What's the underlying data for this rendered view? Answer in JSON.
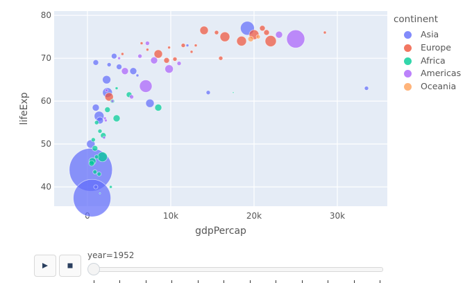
{
  "chart_data": {
    "type": "scatter",
    "subtype": "bubble",
    "title": "",
    "xlabel": "gdpPercap",
    "ylabel": "lifeExp",
    "xlim": [
      -4000,
      36000
    ],
    "ylim": [
      35.5,
      81
    ],
    "x_ticks": [
      0,
      10000,
      20000,
      30000
    ],
    "x_tick_labels": [
      "0",
      "10k",
      "20k",
      "30k"
    ],
    "y_ticks": [
      40,
      50,
      60,
      70,
      80
    ],
    "y_tick_labels": [
      "40",
      "50",
      "60",
      "70",
      "80"
    ],
    "grid": true,
    "legend_title": "continent",
    "legend_position": "right",
    "frame_label": "year=1952",
    "series": [
      {
        "name": "Asia",
        "color": "#636efa",
        "points": [
          {
            "x": 400,
            "y": 44.0,
            "r": 31,
            "note": "China"
          },
          {
            "x": 550,
            "y": 37.4,
            "r": 27,
            "note": "India"
          },
          {
            "x": 1000,
            "y": 69.0,
            "r": 4
          },
          {
            "x": 2300,
            "y": 65.0,
            "r": 6
          },
          {
            "x": 2400,
            "y": 62.0,
            "r": 7
          },
          {
            "x": 2600,
            "y": 68.5,
            "r": 3
          },
          {
            "x": 3200,
            "y": 70.5,
            "r": 4
          },
          {
            "x": 3800,
            "y": 68.0,
            "r": 4
          },
          {
            "x": 5500,
            "y": 67.0,
            "r": 5
          },
          {
            "x": 7500,
            "y": 59.5,
            "r": 6
          },
          {
            "x": 14500,
            "y": 62.0,
            "r": 3
          },
          {
            "x": 19200,
            "y": 77.0,
            "r": 10
          },
          {
            "x": 33500,
            "y": 63.0,
            "r": 3
          },
          {
            "x": 1000,
            "y": 58.5,
            "r": 5
          },
          {
            "x": 1400,
            "y": 56.5,
            "r": 7
          },
          {
            "x": 1500,
            "y": 55.5,
            "r": 5
          },
          {
            "x": 400,
            "y": 50.0,
            "r": 6
          },
          {
            "x": 1000,
            "y": 40.0,
            "r": 3
          },
          {
            "x": 6000,
            "y": 66.0,
            "r": 2
          },
          {
            "x": 12000,
            "y": 73.0,
            "r": 2
          }
        ]
      },
      {
        "name": "Europe",
        "color": "#ef553b",
        "points": [
          {
            "x": 2600,
            "y": 61.0,
            "r": 6
          },
          {
            "x": 8500,
            "y": 71.0,
            "r": 6
          },
          {
            "x": 9500,
            "y": 69.5,
            "r": 4
          },
          {
            "x": 10500,
            "y": 69.8,
            "r": 3
          },
          {
            "x": 14000,
            "y": 76.5,
            "r": 6
          },
          {
            "x": 16500,
            "y": 75.0,
            "r": 7
          },
          {
            "x": 18500,
            "y": 74.0,
            "r": 7
          },
          {
            "x": 20000,
            "y": 75.5,
            "r": 7
          },
          {
            "x": 22000,
            "y": 74.0,
            "r": 8
          },
          {
            "x": 21000,
            "y": 77.0,
            "r": 4
          },
          {
            "x": 21500,
            "y": 76.0,
            "r": 4
          },
          {
            "x": 15500,
            "y": 76.0,
            "r": 3
          },
          {
            "x": 11500,
            "y": 73.0,
            "r": 3
          },
          {
            "x": 13000,
            "y": 73.0,
            "r": 2
          },
          {
            "x": 9800,
            "y": 72.5,
            "r": 2
          },
          {
            "x": 12500,
            "y": 71.5,
            "r": 2
          },
          {
            "x": 16000,
            "y": 70.0,
            "r": 3
          },
          {
            "x": 6500,
            "y": 73.5,
            "r": 2
          },
          {
            "x": 4200,
            "y": 71.0,
            "r": 2
          },
          {
            "x": 28500,
            "y": 76.0,
            "r": 2
          },
          {
            "x": 7200,
            "y": 72.0,
            "r": 2
          }
        ]
      },
      {
        "name": "Africa",
        "color": "#00cc96",
        "points": [
          {
            "x": 1800,
            "y": 47.0,
            "r": 7
          },
          {
            "x": 3000,
            "y": 60.0,
            "r": 3
          },
          {
            "x": 3500,
            "y": 56.0,
            "r": 5
          },
          {
            "x": 5000,
            "y": 61.5,
            "r": 4
          },
          {
            "x": 8500,
            "y": 58.5,
            "r": 5
          },
          {
            "x": 2400,
            "y": 58.0,
            "r": 4
          },
          {
            "x": 900,
            "y": 49.0,
            "r": 4
          },
          {
            "x": 1100,
            "y": 47.0,
            "r": 3
          },
          {
            "x": 600,
            "y": 46.0,
            "r": 5
          },
          {
            "x": 500,
            "y": 45.5,
            "r": 4
          },
          {
            "x": 900,
            "y": 43.5,
            "r": 3
          },
          {
            "x": 1400,
            "y": 43.0,
            "r": 3
          },
          {
            "x": 2800,
            "y": 40.0,
            "r": 2
          },
          {
            "x": 1500,
            "y": 38.5,
            "r": 1
          },
          {
            "x": 1900,
            "y": 52.0,
            "r": 4
          },
          {
            "x": 1100,
            "y": 55.0,
            "r": 3
          },
          {
            "x": 3500,
            "y": 63.0,
            "r": 2
          },
          {
            "x": 17500,
            "y": 62.0,
            "r": 1
          },
          {
            "x": 1500,
            "y": 53.0,
            "r": 3
          },
          {
            "x": 700,
            "y": 51.0,
            "r": 3
          }
        ]
      },
      {
        "name": "Americas",
        "color": "#ab63fa",
        "points": [
          {
            "x": 25000,
            "y": 74.5,
            "r": 13
          },
          {
            "x": 7000,
            "y": 63.5,
            "r": 9
          },
          {
            "x": 9800,
            "y": 67.5,
            "r": 6
          },
          {
            "x": 4500,
            "y": 67.0,
            "r": 5
          },
          {
            "x": 8000,
            "y": 69.5,
            "r": 5
          },
          {
            "x": 11000,
            "y": 68.8,
            "r": 3
          },
          {
            "x": 6300,
            "y": 70.5,
            "r": 3
          },
          {
            "x": 23000,
            "y": 75.5,
            "r": 5
          },
          {
            "x": 7200,
            "y": 73.5,
            "r": 3
          },
          {
            "x": 3800,
            "y": 70.0,
            "r": 2
          },
          {
            "x": 2300,
            "y": 62.5,
            "r": 2
          },
          {
            "x": 5300,
            "y": 61.0,
            "r": 3
          },
          {
            "x": 2100,
            "y": 56.0,
            "r": 2
          },
          {
            "x": 2000,
            "y": 51.5,
            "r": 2
          },
          {
            "x": 3000,
            "y": 60.0,
            "r": 2
          },
          {
            "x": 2200,
            "y": 55.5,
            "r": 2
          }
        ]
      },
      {
        "name": "Oceania",
        "color": "#ffa15a",
        "points": [
          {
            "x": 19600,
            "y": 74.5,
            "r": 4
          },
          {
            "x": 20500,
            "y": 75.0,
            "r": 3
          }
        ]
      }
    ]
  },
  "legend": {
    "title": "continent",
    "items": [
      {
        "label": "Asia",
        "color": "#636efa"
      },
      {
        "label": "Europe",
        "color": "#ef553b"
      },
      {
        "label": "Africa",
        "color": "#00cc96"
      },
      {
        "label": "Americas",
        "color": "#ab63fa"
      },
      {
        "label": "Oceania",
        "color": "#ffa15a"
      }
    ]
  },
  "controls": {
    "play_icon": "play-icon",
    "stop_icon": "stop-icon",
    "slider_label": "year=1952",
    "slider_steps": 12,
    "slider_position": 0
  },
  "axes": {
    "x_title": "gdpPercap",
    "y_title": "lifeExp"
  },
  "style": {
    "plot_bg": "#e5ecf6",
    "grid_color": "#ffffff"
  }
}
